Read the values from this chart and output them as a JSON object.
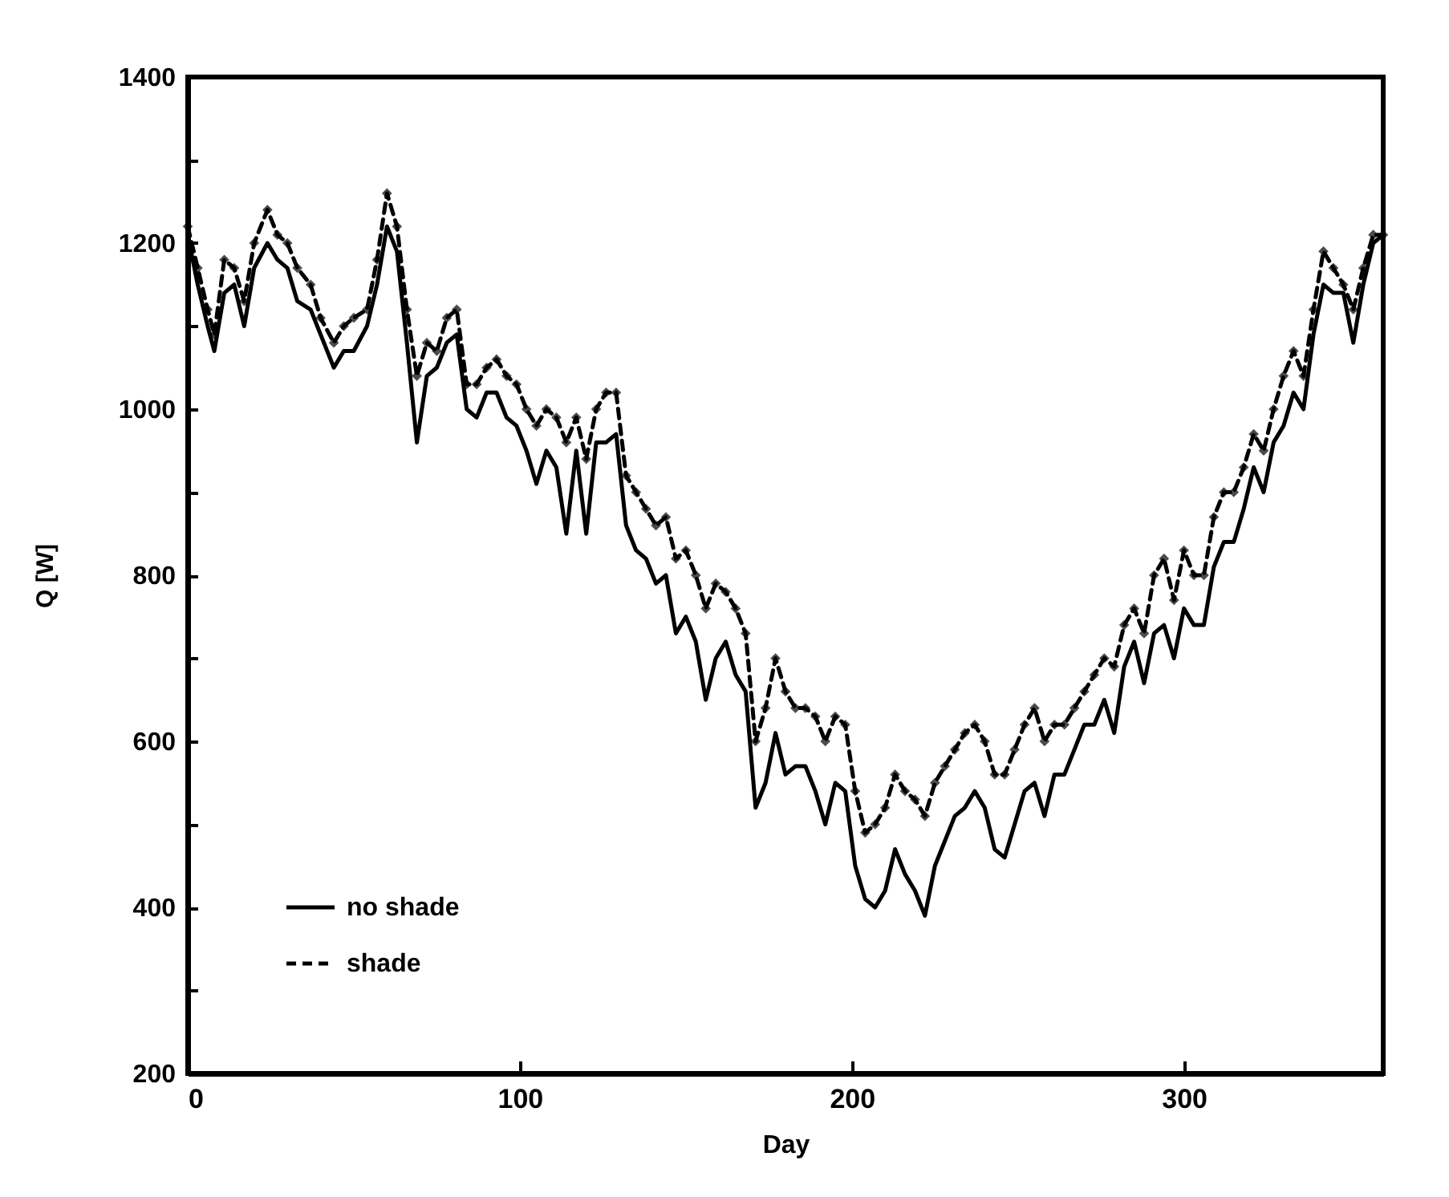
{
  "chart_data": {
    "type": "line",
    "xlabel": "Day",
    "ylabel": "Q [W]",
    "x": [
      0,
      3,
      6,
      8,
      11,
      14,
      17,
      20,
      24,
      27,
      30,
      33,
      37,
      40,
      44,
      47,
      50,
      54,
      57,
      60,
      63,
      66,
      69,
      72,
      75,
      78,
      81,
      84,
      87,
      90,
      93,
      96,
      99,
      102,
      105,
      108,
      111,
      114,
      117,
      120,
      123,
      126,
      129,
      132,
      135,
      138,
      141,
      144,
      147,
      150,
      153,
      156,
      159,
      162,
      165,
      168,
      171,
      174,
      177,
      180,
      183,
      186,
      189,
      192,
      195,
      198,
      201,
      204,
      207,
      210,
      213,
      216,
      219,
      222,
      225,
      228,
      231,
      234,
      237,
      240,
      243,
      246,
      249,
      252,
      255,
      258,
      261,
      264,
      267,
      270,
      273,
      276,
      279,
      282,
      285,
      288,
      291,
      294,
      297,
      300,
      303,
      306,
      309,
      312,
      315,
      318,
      321,
      324,
      327,
      330,
      333,
      336,
      339,
      342,
      345,
      348,
      351,
      354,
      357,
      360
    ],
    "series": [
      {
        "name": "no shade",
        "color": "#000000",
        "line_style": "solid",
        "marker": "none",
        "values": [
          1210,
          1150,
          1100,
          1070,
          1140,
          1150,
          1100,
          1170,
          1200,
          1180,
          1170,
          1130,
          1120,
          1090,
          1050,
          1070,
          1070,
          1100,
          1150,
          1220,
          1190,
          1080,
          960,
          1040,
          1050,
          1080,
          1090,
          1000,
          990,
          1020,
          1020,
          990,
          980,
          950,
          910,
          950,
          930,
          850,
          950,
          850,
          960,
          960,
          970,
          860,
          830,
          820,
          790,
          800,
          730,
          750,
          720,
          650,
          700,
          720,
          680,
          660,
          520,
          550,
          610,
          560,
          570,
          570,
          540,
          500,
          550,
          540,
          450,
          410,
          400,
          420,
          470,
          440,
          420,
          390,
          450,
          480,
          510,
          520,
          540,
          520,
          470,
          460,
          500,
          540,
          550,
          510,
          560,
          560,
          590,
          620,
          620,
          650,
          610,
          690,
          720,
          670,
          730,
          740,
          700,
          760,
          740,
          740,
          810,
          840,
          840,
          880,
          930,
          900,
          960,
          980,
          1020,
          1000,
          1090,
          1150,
          1140,
          1140,
          1080,
          1150,
          1200,
          1210
        ]
      },
      {
        "name": "shade",
        "color": "#000000",
        "line_style": "dashed",
        "marker": "diamond",
        "values": [
          1220,
          1170,
          1120,
          1090,
          1180,
          1170,
          1130,
          1200,
          1240,
          1210,
          1200,
          1170,
          1150,
          1110,
          1080,
          1100,
          1110,
          1120,
          1180,
          1260,
          1220,
          1120,
          1040,
          1080,
          1070,
          1110,
          1120,
          1030,
          1030,
          1050,
          1060,
          1040,
          1030,
          1000,
          980,
          1000,
          990,
          960,
          990,
          940,
          1000,
          1020,
          1020,
          920,
          900,
          880,
          860,
          870,
          820,
          830,
          800,
          760,
          790,
          780,
          760,
          730,
          600,
          640,
          700,
          660,
          640,
          640,
          630,
          600,
          630,
          620,
          540,
          490,
          500,
          520,
          560,
          540,
          530,
          510,
          550,
          570,
          590,
          610,
          620,
          600,
          560,
          560,
          590,
          620,
          640,
          600,
          620,
          620,
          640,
          660,
          680,
          700,
          690,
          740,
          760,
          730,
          800,
          820,
          770,
          830,
          800,
          800,
          870,
          900,
          900,
          930,
          970,
          950,
          1000,
          1040,
          1070,
          1040,
          1120,
          1190,
          1170,
          1150,
          1120,
          1170,
          1210,
          1210
        ]
      }
    ],
    "xlim": [
      0,
      360
    ],
    "xticks": [
      0,
      100,
      200,
      300
    ],
    "ylim": [
      200,
      1400
    ],
    "yticks": [
      200,
      {
        "value": 300,
        "label": null
      },
      400,
      {
        "value": 500,
        "label": null
      },
      600,
      {
        "value": 700,
        "label": null
      },
      800,
      {
        "value": 900,
        "label": null
      },
      1000,
      {
        "value": 1100,
        "label": null
      },
      1200,
      {
        "value": 1300,
        "label": null
      },
      1400
    ],
    "grid": false,
    "legend": "bottom left"
  }
}
